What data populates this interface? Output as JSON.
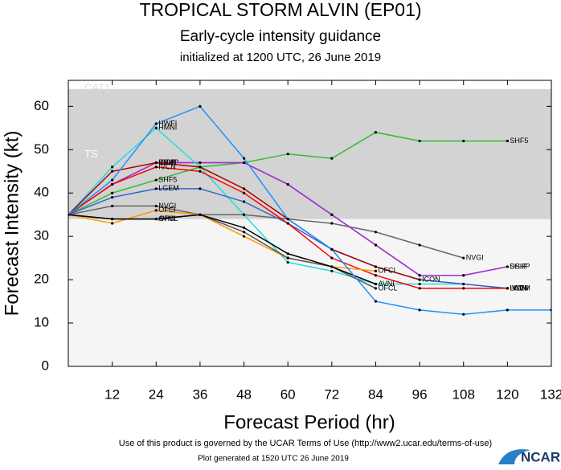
{
  "chart_data": {
    "type": "line",
    "title": "TROPICAL STORM ALVIN (EP01)",
    "subtitle": "Early-cycle intensity guidance",
    "initialized": "initialized at 1200 UTC, 26 June 2019",
    "x_label": "Forecast Period (hr)",
    "y_label": "Forecast Intensity (kt)",
    "xlim": [
      0,
      132
    ],
    "xticks": [
      12,
      24,
      36,
      48,
      60,
      72,
      84,
      96,
      108,
      120,
      132
    ],
    "ylim": [
      0,
      66
    ],
    "yticks": [
      0,
      10,
      20,
      30,
      40,
      50,
      60
    ],
    "bands": [
      {
        "label": "TS",
        "from": 34,
        "to": 64,
        "color": "#d3d3d3"
      },
      {
        "label": "CAT1",
        "from": 64,
        "to": 83,
        "color": "#ffffff"
      }
    ],
    "background": "#f5f5f5",
    "x": [
      0,
      12,
      24,
      36,
      48,
      60,
      72,
      84,
      96,
      108,
      120,
      132
    ],
    "series": [
      {
        "name": "SHF5",
        "color": "#33bb33",
        "values": [
          35,
          40,
          43,
          46,
          47,
          49,
          48,
          54,
          52,
          52,
          52,
          null
        ]
      },
      {
        "name": "NVGI",
        "color": "#666666",
        "values": [
          35,
          37,
          37,
          35,
          35,
          34,
          33,
          31,
          28,
          25,
          null,
          null
        ]
      },
      {
        "name": "DSHP",
        "color": "#ee22ee",
        "values": [
          35,
          42,
          47,
          47,
          47,
          42,
          35,
          28,
          21,
          21,
          23,
          null
        ]
      },
      {
        "name": "SHIP",
        "color": "#9933cc",
        "values": [
          35,
          42,
          47,
          47,
          47,
          42,
          35,
          28,
          21,
          21,
          23,
          null
        ]
      },
      {
        "name": "HMNI",
        "color": "#22dddd",
        "values": [
          35,
          46,
          55,
          46,
          35,
          24,
          22,
          19,
          19,
          19,
          18,
          null
        ]
      },
      {
        "name": "LGEM",
        "color": "#3366cc",
        "values": [
          35,
          39,
          41,
          41,
          38,
          33,
          27,
          23,
          20,
          19,
          18,
          null
        ]
      },
      {
        "name": "ICON",
        "color": "#aa0000",
        "values": [
          35,
          45,
          47,
          46,
          41,
          34,
          27,
          23,
          20,
          null,
          null,
          null
        ]
      },
      {
        "name": "IVCN",
        "color": "#ff0000",
        "values": [
          35,
          42,
          46,
          45,
          40,
          33,
          25,
          21,
          18,
          18,
          18,
          null
        ]
      },
      {
        "name": "OFCI",
        "color": "#ff9900",
        "values": [
          35,
          33,
          36,
          35,
          30,
          25,
          23,
          22,
          null,
          null,
          null,
          null
        ]
      },
      {
        "name": "OFCL",
        "color": "#555555",
        "values": [
          35,
          34,
          34,
          35,
          31,
          25,
          23,
          18,
          null,
          null,
          null,
          null
        ]
      },
      {
        "name": "AVNI",
        "color": "#000000",
        "values": [
          35,
          34,
          34,
          35,
          32,
          26,
          23,
          19,
          null,
          null,
          null,
          null
        ]
      },
      {
        "name": "HWFI",
        "color": "#1e90ff",
        "values": [
          35,
          43,
          56,
          60,
          48,
          34,
          27,
          15,
          13,
          12,
          13,
          13
        ]
      }
    ],
    "footer": "Use of this product is governed by the UCAR Terms of Use (http://www2.ucar.edu/terms-of-use)",
    "generated": "Plot generated at 1520 UTC  26 June 2019",
    "logo": "NCAR"
  }
}
